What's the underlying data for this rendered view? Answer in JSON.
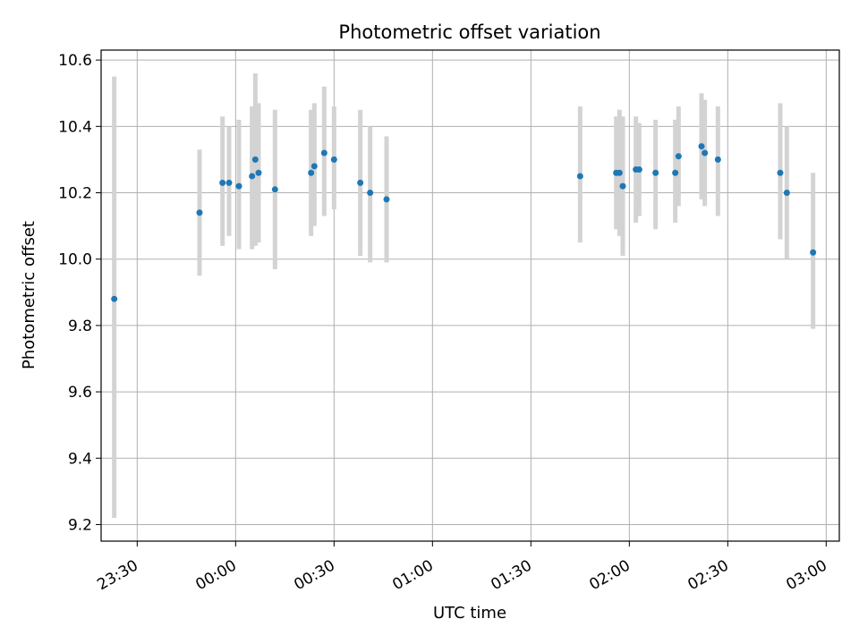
{
  "chart_data": {
    "type": "scatter",
    "title": "Photometric offset variation",
    "xlabel": "UTC time",
    "ylabel": "Photometric offset",
    "x_axis": "time",
    "x_range": [
      "23:19",
      "03:04"
    ],
    "x_ticks": [
      "23:30",
      "00:00",
      "00:30",
      "01:00",
      "01:30",
      "02:00",
      "02:30",
      "03:00"
    ],
    "ylim": [
      9.15,
      10.63
    ],
    "y_ticks": [
      "9.2",
      "9.4",
      "9.6",
      "9.8",
      "10.0",
      "10.2",
      "10.4",
      "10.6"
    ],
    "grid": true,
    "marker_color": "#1f77b4",
    "errorbar_color": "#d3d3d3",
    "points": [
      {
        "x": "23:23",
        "y": 9.88,
        "ylo": 9.22,
        "yhi": 10.55
      },
      {
        "x": "23:49",
        "y": 10.14,
        "ylo": 9.95,
        "yhi": 10.33
      },
      {
        "x": "23:56",
        "y": 10.23,
        "ylo": 10.04,
        "yhi": 10.43
      },
      {
        "x": "23:58",
        "y": 10.23,
        "ylo": 10.07,
        "yhi": 10.4
      },
      {
        "x": "00:01",
        "y": 10.22,
        "ylo": 10.03,
        "yhi": 10.42
      },
      {
        "x": "00:05",
        "y": 10.25,
        "ylo": 10.03,
        "yhi": 10.46
      },
      {
        "x": "00:06",
        "y": 10.3,
        "ylo": 10.04,
        "yhi": 10.56
      },
      {
        "x": "00:07",
        "y": 10.26,
        "ylo": 10.05,
        "yhi": 10.47
      },
      {
        "x": "00:12",
        "y": 10.21,
        "ylo": 9.97,
        "yhi": 10.45
      },
      {
        "x": "00:23",
        "y": 10.26,
        "ylo": 10.07,
        "yhi": 10.45
      },
      {
        "x": "00:24",
        "y": 10.28,
        "ylo": 10.1,
        "yhi": 10.47
      },
      {
        "x": "00:27",
        "y": 10.32,
        "ylo": 10.13,
        "yhi": 10.52
      },
      {
        "x": "00:30",
        "y": 10.3,
        "ylo": 10.15,
        "yhi": 10.46
      },
      {
        "x": "00:38",
        "y": 10.23,
        "ylo": 10.01,
        "yhi": 10.45
      },
      {
        "x": "00:41",
        "y": 10.2,
        "ylo": 9.99,
        "yhi": 10.4
      },
      {
        "x": "00:46",
        "y": 10.18,
        "ylo": 9.99,
        "yhi": 10.37
      },
      {
        "x": "01:45",
        "y": 10.25,
        "ylo": 10.05,
        "yhi": 10.46
      },
      {
        "x": "01:56",
        "y": 10.26,
        "ylo": 10.09,
        "yhi": 10.43
      },
      {
        "x": "01:57",
        "y": 10.26,
        "ylo": 10.07,
        "yhi": 10.45
      },
      {
        "x": "01:58",
        "y": 10.22,
        "ylo": 10.01,
        "yhi": 10.43
      },
      {
        "x": "02:02",
        "y": 10.27,
        "ylo": 10.11,
        "yhi": 10.43
      },
      {
        "x": "02:03",
        "y": 10.27,
        "ylo": 10.13,
        "yhi": 10.41
      },
      {
        "x": "02:08",
        "y": 10.26,
        "ylo": 10.09,
        "yhi": 10.42
      },
      {
        "x": "02:14",
        "y": 10.26,
        "ylo": 10.11,
        "yhi": 10.42
      },
      {
        "x": "02:15",
        "y": 10.31,
        "ylo": 10.16,
        "yhi": 10.46
      },
      {
        "x": "02:22",
        "y": 10.34,
        "ylo": 10.18,
        "yhi": 10.5
      },
      {
        "x": "02:23",
        "y": 10.32,
        "ylo": 10.16,
        "yhi": 10.48
      },
      {
        "x": "02:27",
        "y": 10.3,
        "ylo": 10.13,
        "yhi": 10.46
      },
      {
        "x": "02:46",
        "y": 10.26,
        "ylo": 10.06,
        "yhi": 10.47
      },
      {
        "x": "02:48",
        "y": 10.2,
        "ylo": 10.0,
        "yhi": 10.4
      },
      {
        "x": "02:56",
        "y": 10.02,
        "ylo": 9.79,
        "yhi": 10.26
      }
    ]
  }
}
